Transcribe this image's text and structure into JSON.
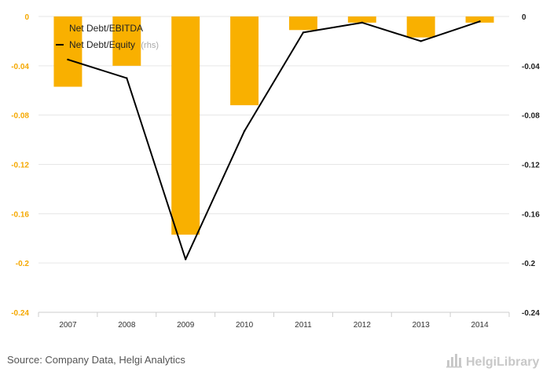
{
  "chart_data": {
    "type": "bar+line",
    "categories": [
      "2007",
      "2008",
      "2009",
      "2010",
      "2011",
      "2012",
      "2013",
      "2014"
    ],
    "series": [
      {
        "name": "Net Debt/EBITDA",
        "type": "bar",
        "axis": "left",
        "color": "#f9b000",
        "values": [
          -0.057,
          -0.04,
          -0.177,
          -0.072,
          -0.011,
          -0.005,
          -0.017,
          -0.005
        ]
      },
      {
        "name": "Net Debt/Equity",
        "name_suffix": "(rhs)",
        "type": "line",
        "axis": "right",
        "color": "#000000",
        "values": [
          -0.035,
          -0.05,
          -0.197,
          -0.093,
          -0.013,
          -0.005,
          -0.02,
          -0.004
        ]
      }
    ],
    "y_left": {
      "min": -0.24,
      "max": 0,
      "ticks": [
        0,
        -0.04,
        -0.08,
        -0.12,
        -0.16,
        -0.2,
        -0.24
      ],
      "tick_color": "#f5a800"
    },
    "y_right": {
      "min": -0.24,
      "max": 0,
      "ticks": [
        0,
        -0.04,
        -0.08,
        -0.12,
        -0.16,
        -0.2,
        -0.24
      ],
      "tick_color": "#222222"
    },
    "grid": true,
    "legend_position": "top-left"
  },
  "footer": {
    "source": "Source: Company Data, Helgi Analytics",
    "brand": "HelgiLibrary"
  },
  "colors": {
    "grid": "#e6e6e6",
    "axis": "#cccccc",
    "background": "#ffffff"
  }
}
